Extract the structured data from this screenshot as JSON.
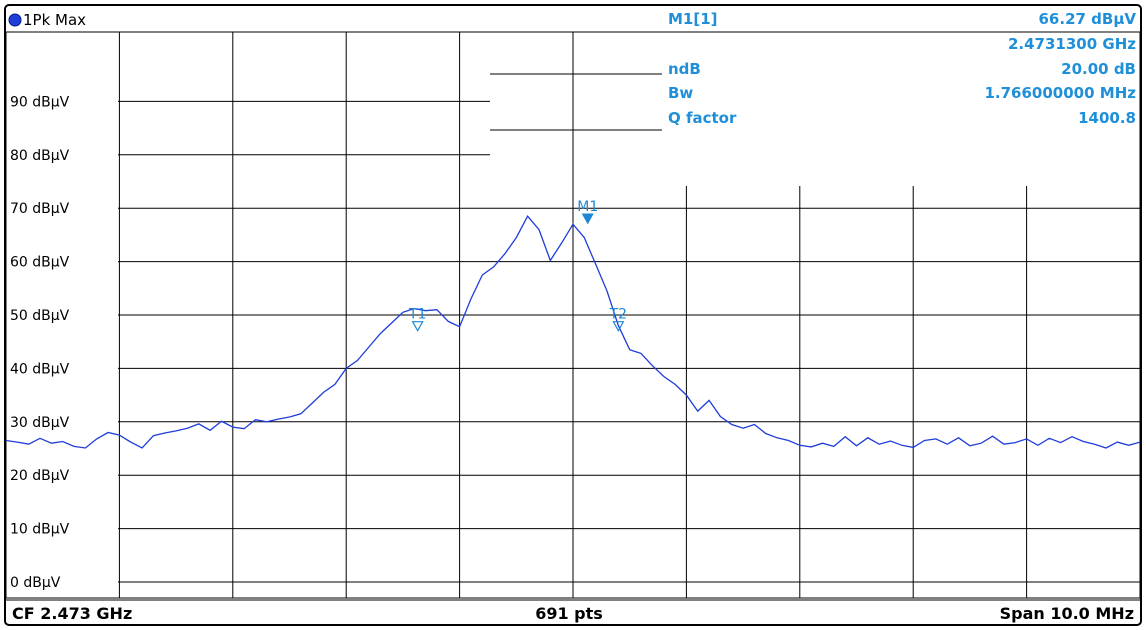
{
  "trace_label": "1Pk Max",
  "colors": {
    "trace": "#1f3ddb",
    "marker": "#1e88d6",
    "info_text": "#1e8fd8",
    "grid": "#000000"
  },
  "info_panel": [
    {
      "label": "M1[1]",
      "value": "66.27 dBµV"
    },
    {
      "label": "",
      "value": "2.4731300 GHz"
    },
    {
      "label": "ndB",
      "value": "20.00 dB"
    },
    {
      "label": "Bw",
      "value": "1.766000000 MHz"
    },
    {
      "label": "Q factor",
      "value": "1400.8"
    }
  ],
  "footer": {
    "left": "CF 2.473 GHz",
    "center": "691 pts",
    "right": "Span 10.0 MHz"
  },
  "chart_data": {
    "type": "line",
    "ylim": [
      -3,
      103
    ],
    "yticks": [
      0,
      10,
      20,
      30,
      40,
      50,
      60,
      70,
      80,
      90
    ],
    "ytick_labels": [
      "0 dBµV",
      "10 dBµV",
      "20 dBµV",
      "30 dBµV",
      "40 dBµV",
      "50 dBµV",
      "60 dBµV",
      "70 dBµV",
      "80 dBµV",
      "90 dBµV"
    ],
    "xlim": [
      2.468,
      2.478
    ],
    "x_divisions": 10,
    "grid": true,
    "markers": [
      {
        "label": "M1",
        "x": 2.47313,
        "y": 66.27,
        "filled": true
      },
      {
        "label": "T1",
        "x": 2.47163,
        "y": 46.5,
        "filled": false
      },
      {
        "label": "T2",
        "x": 2.4734,
        "y": 46.5,
        "filled": false
      }
    ],
    "series": [
      {
        "x": [
          2.468,
          2.4681,
          2.4682,
          2.4683,
          2.4684,
          2.4685,
          2.4686,
          2.4687,
          2.4688,
          2.4689,
          2.469,
          2.4691,
          2.4692,
          2.4693,
          2.4694,
          2.4695,
          2.4696,
          2.4697,
          2.4698,
          2.4699,
          2.47,
          2.4701,
          2.4702,
          2.4703,
          2.4704,
          2.4705,
          2.4706,
          2.4707,
          2.4708,
          2.4709,
          2.471,
          2.4711,
          2.4712,
          2.4713,
          2.4714,
          2.4715,
          2.4716,
          2.4717,
          2.4718,
          2.4719,
          2.472,
          2.4721,
          2.4722,
          2.4723,
          2.4724,
          2.4725,
          2.4726,
          2.4727,
          2.4728,
          2.4729,
          2.473,
          2.4731,
          2.4732,
          2.4733,
          2.4734,
          2.4735,
          2.4736,
          2.4737,
          2.4738,
          2.4739,
          2.474,
          2.4741,
          2.4742,
          2.4743,
          2.4744,
          2.4745,
          2.4746,
          2.4747,
          2.4748,
          2.4749,
          2.475,
          2.4751,
          2.4752,
          2.4753,
          2.4754,
          2.4755,
          2.4756,
          2.4757,
          2.4758,
          2.4759,
          2.476,
          2.4761,
          2.4762,
          2.4763,
          2.4764,
          2.4765,
          2.4766,
          2.4767,
          2.4768,
          2.4769,
          2.477,
          2.4771,
          2.4772,
          2.4773,
          2.4774,
          2.4775,
          2.4776,
          2.4777,
          2.4778,
          2.4779,
          2.478
        ],
        "values": [
          26.5,
          26.2,
          25.8,
          26.9,
          26.0,
          26.3,
          25.4,
          25.1,
          26.8,
          28.0,
          27.5,
          26.2,
          25.1,
          27.4,
          27.9,
          28.3,
          28.8,
          29.6,
          28.4,
          30.1,
          29.0,
          28.7,
          30.4,
          30.0,
          30.5,
          30.9,
          31.5,
          33.5,
          35.5,
          37.0,
          40.0,
          41.5,
          44.0,
          46.5,
          48.5,
          50.5,
          51.2,
          50.8,
          51.0,
          48.8,
          47.8,
          53.0,
          57.5,
          59.0,
          61.5,
          64.5,
          68.5,
          66.0,
          60.2,
          63.5,
          67.0,
          64.5,
          59.5,
          54.5,
          48.0,
          43.5,
          42.8,
          40.5,
          38.5,
          37.0,
          35.0,
          32.0,
          34.0,
          31.0,
          29.5,
          28.8,
          29.5,
          27.8,
          27.0,
          26.5,
          25.6,
          25.3,
          26.0,
          25.4,
          27.2,
          25.5,
          27.0,
          25.8,
          26.4,
          25.6,
          25.2,
          26.5,
          26.8,
          25.8,
          27.0,
          25.5,
          26.0,
          27.3,
          25.8,
          26.1,
          26.8,
          25.6,
          26.9,
          26.1,
          27.2,
          26.3,
          25.8,
          25.1,
          26.2,
          25.6,
          26.2
        ]
      }
    ]
  }
}
